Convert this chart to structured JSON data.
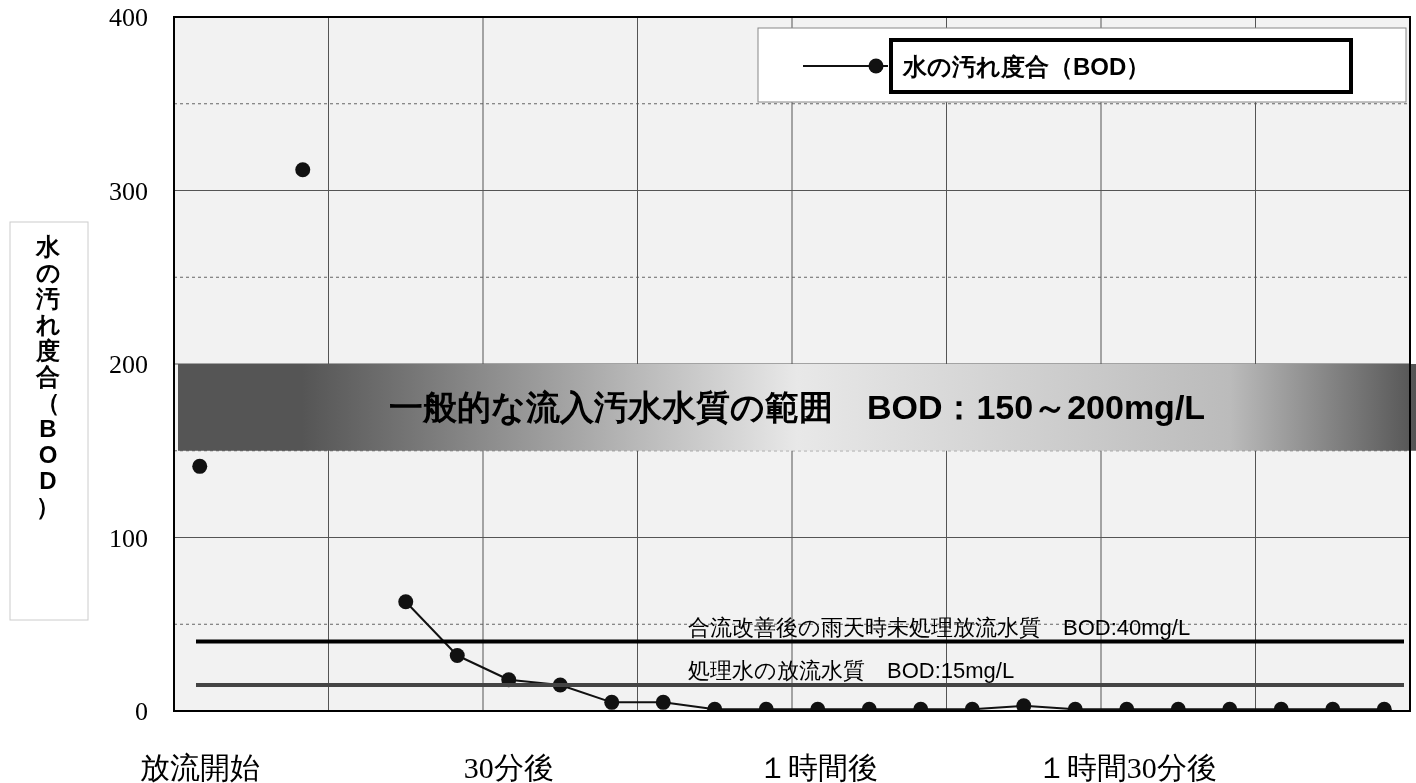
{
  "chart_data": {
    "type": "line",
    "ylabel": "水の汚れ度合（BOD）",
    "categories": [
      "放流開始",
      null,
      null,
      null,
      null,
      null,
      "30分後",
      null,
      null,
      null,
      null,
      null,
      "１時間後",
      null,
      null,
      null,
      null,
      null,
      "１時間30分後",
      null,
      null,
      null,
      null,
      null
    ],
    "series": [
      {
        "name": "水の汚れ度合（BOD）",
        "color": "#111111",
        "values": [
          141,
          null,
          312,
          null,
          63,
          32,
          18,
          15,
          5,
          5,
          1,
          1,
          1,
          1,
          1,
          1,
          3,
          1,
          1,
          1,
          1,
          1,
          1,
          1
        ]
      }
    ],
    "ylim": [
      0,
      400
    ],
    "yticks": [
      0,
      100,
      200,
      300,
      400
    ],
    "grid": true,
    "legend": "top right",
    "marker": "circle",
    "line_style": "solid",
    "ref_lines": [
      {
        "axis": "y",
        "value": 40,
        "label": "合流改善後の雨天時未処理放流水質　BOD:40mg/L",
        "color": "#000000"
      },
      {
        "axis": "y",
        "value": 15,
        "label": "処理水の放流水質　BOD:15mg/L",
        "color": "#444444"
      }
    ],
    "bands": [
      {
        "axis": "y",
        "from": 150,
        "to": 200,
        "label": "一般的な流入汚水水質の範囲　BOD：150～200mg/L",
        "color": "#555555"
      }
    ]
  }
}
